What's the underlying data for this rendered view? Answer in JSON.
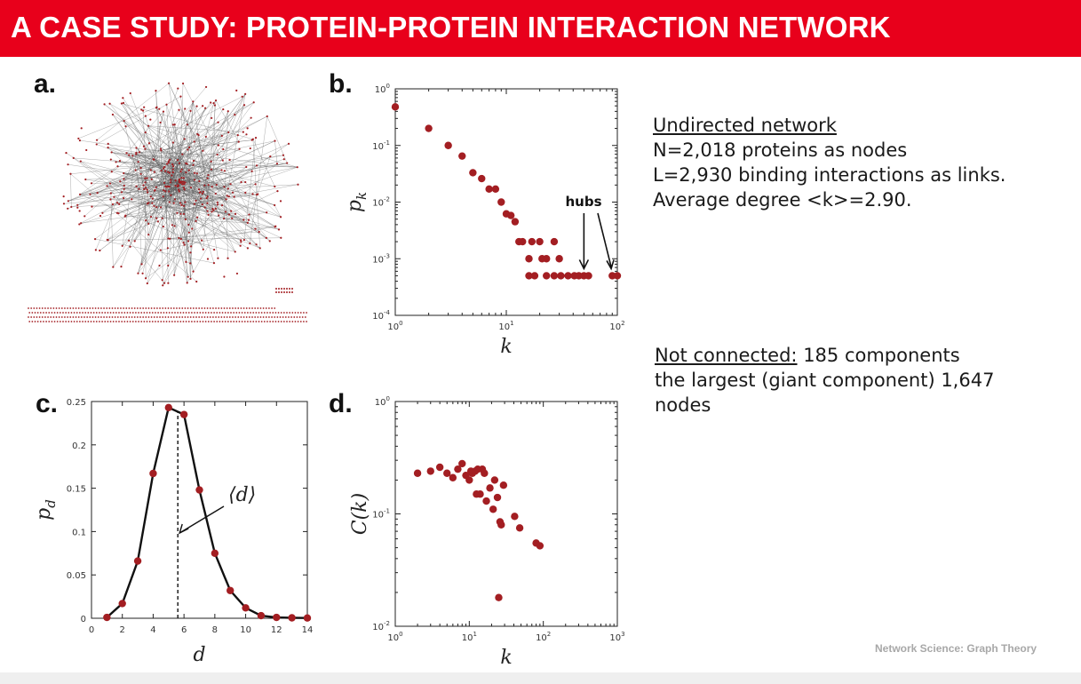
{
  "slide": {
    "title": "A CASE STUDY: PROTEIN-PROTEIN INTERACTION NETWORK",
    "footer": "Network Science: Graph Theory",
    "accent_color": "#e8001b",
    "marker_color": "#a31e22"
  },
  "panels": {
    "a": "a.",
    "b": "b.",
    "c": "c.",
    "d": "d."
  },
  "info": {
    "heading_1": "Undirected network",
    "line_1": "N=2,018 proteins as nodes",
    "line_2": "L=2,930 binding interactions as links.",
    "line_3": "Average degree  <k>=2.90.",
    "heading_2": "Not connected:",
    "line_4_rest": " 185 components",
    "line_5": " the largest (giant component) 1,647",
    "line_6": "nodes"
  },
  "chart_data": [
    {
      "panel": "b",
      "type": "scatter",
      "xlabel": "k",
      "ylabel": "p_k",
      "xscale": "log",
      "yscale": "log",
      "xlim": [
        1,
        100
      ],
      "ylim": [
        0.0001,
        1
      ],
      "xticks": [
        "10^0",
        "10^1",
        "10^2"
      ],
      "yticks": [
        "10^0",
        "10^-1",
        "10^-2",
        "10^-3",
        "10^-4"
      ],
      "annotation": "hubs",
      "points": [
        [
          1,
          0.48
        ],
        [
          2,
          0.2
        ],
        [
          3,
          0.1
        ],
        [
          4,
          0.065
        ],
        [
          5,
          0.033
        ],
        [
          6,
          0.026
        ],
        [
          7,
          0.017
        ],
        [
          8,
          0.017
        ],
        [
          9,
          0.01
        ],
        [
          10,
          0.0062
        ],
        [
          11,
          0.0058
        ],
        [
          12,
          0.0045
        ],
        [
          13,
          0.002
        ],
        [
          14,
          0.002
        ],
        [
          16,
          0.001
        ],
        [
          17,
          0.002
        ],
        [
          20,
          0.002
        ],
        [
          21,
          0.001
        ],
        [
          23,
          0.001
        ],
        [
          27,
          0.002
        ],
        [
          30,
          0.001
        ],
        [
          16,
          0.0005
        ],
        [
          18,
          0.0005
        ],
        [
          23,
          0.0005
        ],
        [
          27,
          0.0005
        ],
        [
          31,
          0.0005
        ],
        [
          36,
          0.0005
        ],
        [
          41,
          0.0005
        ],
        [
          45,
          0.0005
        ],
        [
          50,
          0.0005
        ],
        [
          55,
          0.0005
        ],
        [
          90,
          0.0005
        ],
        [
          100,
          0.0005
        ]
      ]
    },
    {
      "panel": "c",
      "type": "line",
      "xlabel": "d",
      "ylabel": "p_d",
      "xlim": [
        0,
        14
      ],
      "ylim": [
        0,
        0.25
      ],
      "xticks": [
        "0",
        "2",
        "4",
        "6",
        "8",
        "10",
        "12",
        "14"
      ],
      "yticks": [
        "0",
        "0.05",
        "0.1",
        "0.15",
        "0.2",
        "0.25"
      ],
      "mean_marker": 5.6,
      "annotation": "⟨d⟩",
      "x": [
        1,
        2,
        3,
        4,
        5,
        6,
        7,
        8,
        9,
        10,
        11,
        12,
        13,
        14
      ],
      "y": [
        0.001,
        0.017,
        0.066,
        0.167,
        0.243,
        0.235,
        0.148,
        0.075,
        0.032,
        0.012,
        0.003,
        0.001,
        0.0005,
        0.0003
      ]
    },
    {
      "panel": "d",
      "type": "scatter",
      "xlabel": "k",
      "ylabel": "C(k)",
      "xscale": "log",
      "yscale": "log",
      "xlim": [
        1,
        1000
      ],
      "ylim": [
        0.01,
        1
      ],
      "xticks": [
        "10^0",
        "10^1",
        "10^2",
        "10^3"
      ],
      "yticks": [
        "10^0",
        "10^-1",
        "10^-2"
      ],
      "points": [
        [
          2,
          0.23
        ],
        [
          3,
          0.24
        ],
        [
          4,
          0.26
        ],
        [
          5,
          0.23
        ],
        [
          6,
          0.21
        ],
        [
          7,
          0.25
        ],
        [
          8,
          0.28
        ],
        [
          9,
          0.22
        ],
        [
          10,
          0.2
        ],
        [
          10.5,
          0.24
        ],
        [
          11,
          0.23
        ],
        [
          12,
          0.24
        ],
        [
          12.5,
          0.15
        ],
        [
          13,
          0.25
        ],
        [
          14,
          0.15
        ],
        [
          15,
          0.25
        ],
        [
          16,
          0.23
        ],
        [
          17,
          0.13
        ],
        [
          19,
          0.17
        ],
        [
          21,
          0.11
        ],
        [
          22,
          0.2
        ],
        [
          24,
          0.14
        ],
        [
          26,
          0.085
        ],
        [
          27,
          0.08
        ],
        [
          29,
          0.18
        ],
        [
          41,
          0.095
        ],
        [
          48,
          0.075
        ],
        [
          80,
          0.055
        ],
        [
          90,
          0.052
        ],
        [
          25,
          0.018
        ]
      ]
    }
  ]
}
